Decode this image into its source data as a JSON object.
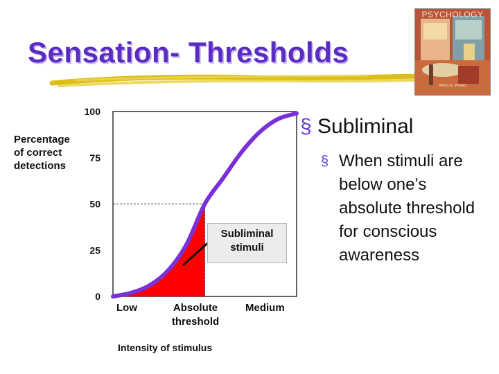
{
  "slide": {
    "title": "Sensation- Thresholds",
    "book": {
      "cover_title": "PSYCHOLOGY",
      "author": "DAVID G. MYERS"
    }
  },
  "chart_data": {
    "type": "line",
    "title": "",
    "ylabel": "Percentage\nof correct\ndetections",
    "xlabel": "Intensity of stimulus",
    "yticks": [
      100,
      75,
      50,
      25,
      0
    ],
    "ylim": [
      0,
      100
    ],
    "x_categories": [
      "Low",
      "Absolute\nthreshold",
      "Medium"
    ],
    "series": [
      {
        "x": [
          0,
          0.25,
          0.5,
          0.75,
          1.0,
          1.25,
          1.5,
          1.75,
          2.0,
          2.25,
          2.5
        ],
        "y": [
          0,
          2,
          6,
          14,
          28,
          50,
          64,
          78,
          89,
          96,
          99
        ],
        "color": "#7a2fd8"
      }
    ],
    "shaded_region": {
      "x_from": 0,
      "x_to": 1.25,
      "color": "#ff0000"
    },
    "threshold_marker": {
      "x": 1.25,
      "y": 50
    },
    "annotation": "Subliminal\nstimuli",
    "grid": false
  },
  "bullets": {
    "level1": "Subliminal",
    "level2": "When stimuli are below one’s absolute threshold for conscious awareness",
    "marker": "§"
  },
  "colors": {
    "title": "#5b2cc4",
    "curve": "#7a2fd8",
    "fill": "#ff0000",
    "brush": "#d8b600"
  }
}
